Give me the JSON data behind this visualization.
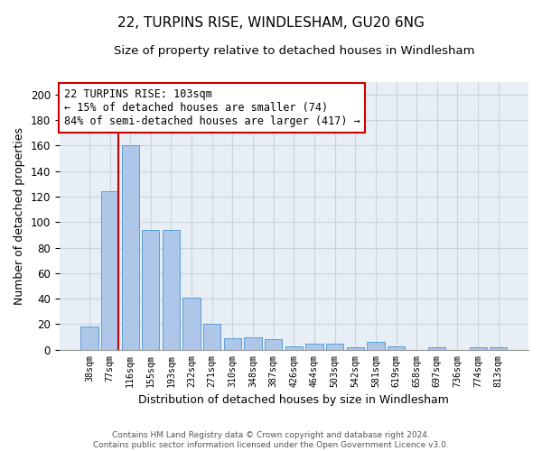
{
  "title": "22, TURPINS RISE, WINDLESHAM, GU20 6NG",
  "subtitle": "Size of property relative to detached houses in Windlesham",
  "xlabel": "Distribution of detached houses by size in Windlesham",
  "ylabel": "Number of detached properties",
  "categories": [
    "38sqm",
    "77sqm",
    "116sqm",
    "155sqm",
    "193sqm",
    "232sqm",
    "271sqm",
    "310sqm",
    "348sqm",
    "387sqm",
    "426sqm",
    "464sqm",
    "503sqm",
    "542sqm",
    "581sqm",
    "619sqm",
    "658sqm",
    "697sqm",
    "736sqm",
    "774sqm",
    "813sqm"
  ],
  "values": [
    18,
    124,
    160,
    94,
    94,
    41,
    20,
    9,
    10,
    8,
    3,
    5,
    5,
    2,
    6,
    3,
    0,
    2,
    0,
    2,
    2
  ],
  "bar_color": "#aec6e8",
  "bar_edge_color": "#5a9fd4",
  "annotation_line1": "22 TURPINS RISE: 103sqm",
  "annotation_line2": "← 15% of detached houses are smaller (74)",
  "annotation_line3": "84% of semi-detached houses are larger (417) →",
  "annotation_box_color": "#ffffff",
  "annotation_box_edge_color": "#cc0000",
  "vline_color": "#cc0000",
  "ylim": [
    0,
    210
  ],
  "yticks": [
    0,
    20,
    40,
    60,
    80,
    100,
    120,
    140,
    160,
    180,
    200
  ],
  "grid_color": "#c8d4e0",
  "bg_color": "#e8eef5",
  "footer": "Contains HM Land Registry data © Crown copyright and database right 2024.\nContains public sector information licensed under the Open Government Licence v3.0.",
  "title_fontsize": 11,
  "subtitle_fontsize": 9.5,
  "xlabel_fontsize": 9,
  "ylabel_fontsize": 9,
  "annotation_fontsize": 8.5
}
